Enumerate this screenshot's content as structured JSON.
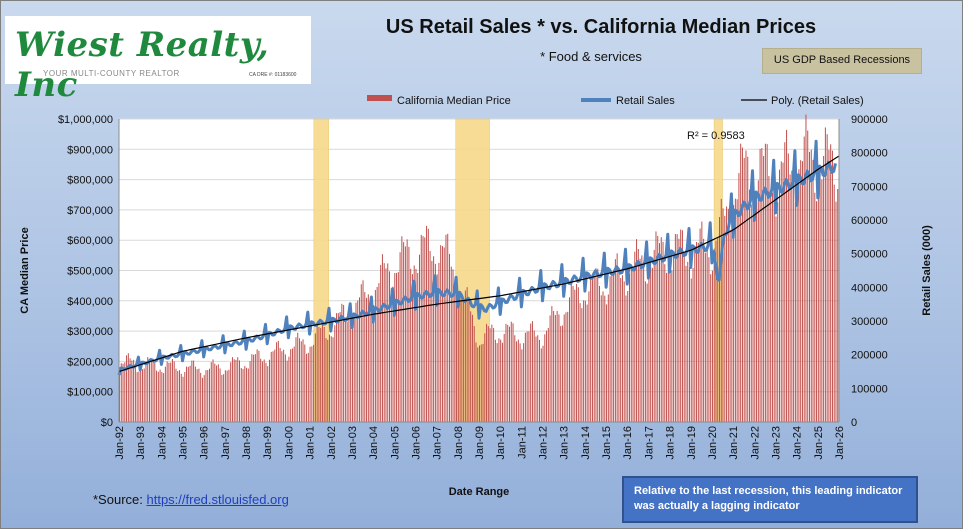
{
  "logo": {
    "name": "Wiest Realty, Inc",
    "tagline": "YOUR MULTI-COUNTY REALTOR",
    "dre": "CA DRE #: 01183600"
  },
  "colors": {
    "bars": "#c0504d",
    "retail_line": "#4f81bd",
    "trend_line": "#000000",
    "recession_band": "#f6d98a"
  },
  "source": {
    "prefix": "*Source: ",
    "link_text": "https://fred.stlouisfed.org"
  },
  "note": "Relative to the last recession, this leading indicator  was actually  a lagging  indicator",
  "recession_legend": "US GDP Based Recessions",
  "chart_data": {
    "type": "bar",
    "title": "US Retail Sales * vs. California Median Prices",
    "subtitle": "* Food & services",
    "xlabel": "Date Range",
    "ylabel_left": "CA Median Price",
    "ylabel_right": "Retail Sales (000)",
    "ylim_left": [
      0,
      1000000
    ],
    "ylim_right": [
      0,
      900000
    ],
    "yticks_left": [
      "$0",
      "$100,000",
      "$200,000",
      "$300,000",
      "$400,000",
      "$500,000",
      "$600,000",
      "$700,000",
      "$800,000",
      "$900,000",
      "$1,000,000"
    ],
    "yticks_right": [
      "0",
      "100000",
      "200000",
      "300000",
      "400000",
      "500000",
      "600000",
      "700000",
      "800000",
      "900000"
    ],
    "x_start": "Jan-92",
    "x_end": "Jan-26",
    "xticks": [
      "Jan-92",
      "Jan-93",
      "Jan-94",
      "Jan-95",
      "Jan-96",
      "Jan-97",
      "Jan-98",
      "Jan-99",
      "Jan-00",
      "Jan-01",
      "Jan-02",
      "Jan-03",
      "Jan-04",
      "Jan-05",
      "Jan-06",
      "Jan-07",
      "Jan-08",
      "Jan-09",
      "Jan-10",
      "Jan-11",
      "Jan-12",
      "Jan-13",
      "Jan-14",
      "Jan-15",
      "Jan-16",
      "Jan-17",
      "Jan-18",
      "Jan-19",
      "Jan-20",
      "Jan-21",
      "Jan-22",
      "Jan-23",
      "Jan-24",
      "Jan-25",
      "Jan-26"
    ],
    "legend_position": "top",
    "grid": true,
    "recessions": [
      {
        "start": 2001.2,
        "end": 2001.9
      },
      {
        "start": 2007.9,
        "end": 2009.5
      },
      {
        "start": 2020.1,
        "end": 2020.5
      }
    ],
    "annotation": "R² = 0.9583",
    "series": [
      {
        "name": "California Median Price",
        "type": "bar",
        "points": [
          [
            1992.0,
            200000
          ],
          [
            1993.0,
            190000
          ],
          [
            1994.0,
            185000
          ],
          [
            1995.0,
            178000
          ],
          [
            1996.0,
            175000
          ],
          [
            1997.0,
            182000
          ],
          [
            1998.0,
            200000
          ],
          [
            1999.0,
            220000
          ],
          [
            2000.0,
            245000
          ],
          [
            2001.0,
            265000
          ],
          [
            2002.0,
            315000
          ],
          [
            2003.0,
            370000
          ],
          [
            2004.0,
            440000
          ],
          [
            2005.0,
            525000
          ],
          [
            2006.0,
            560000
          ],
          [
            2007.0,
            580000
          ],
          [
            2007.7,
            520000
          ],
          [
            2008.0,
            440000
          ],
          [
            2008.5,
            370000
          ],
          [
            2009.0,
            270000
          ],
          [
            2009.5,
            290000
          ],
          [
            2010.0,
            300000
          ],
          [
            2011.0,
            285000
          ],
          [
            2012.0,
            290000
          ],
          [
            2013.0,
            380000
          ],
          [
            2014.0,
            440000
          ],
          [
            2015.0,
            460000
          ],
          [
            2016.0,
            500000
          ],
          [
            2017.0,
            540000
          ],
          [
            2018.0,
            570000
          ],
          [
            2019.0,
            560000
          ],
          [
            2020.0,
            580000
          ],
          [
            2020.5,
            640000
          ],
          [
            2021.0,
            770000
          ],
          [
            2021.5,
            820000
          ],
          [
            2022.0,
            830000
          ],
          [
            2022.5,
            820000
          ],
          [
            2023.0,
            800000
          ],
          [
            2023.5,
            830000
          ],
          [
            2024.0,
            860000
          ],
          [
            2024.5,
            870000
          ],
          [
            2025.0,
            860000
          ],
          [
            2025.7,
            840000
          ]
        ]
      },
      {
        "name": "Retail Sales",
        "type": "line",
        "points": [
          [
            1992.0,
            155000
          ],
          [
            1993.0,
            172000
          ],
          [
            1994.0,
            190000
          ],
          [
            1995.0,
            202000
          ],
          [
            1996.0,
            215000
          ],
          [
            1997.0,
            228000
          ],
          [
            1998.0,
            240000
          ],
          [
            1999.0,
            258000
          ],
          [
            2000.0,
            278000
          ],
          [
            2001.0,
            290000
          ],
          [
            2002.0,
            300000
          ],
          [
            2003.0,
            312000
          ],
          [
            2004.0,
            330000
          ],
          [
            2005.0,
            352000
          ],
          [
            2006.0,
            372000
          ],
          [
            2007.0,
            385000
          ],
          [
            2008.0,
            380000
          ],
          [
            2008.7,
            350000
          ],
          [
            2009.3,
            335000
          ],
          [
            2010.0,
            355000
          ],
          [
            2011.0,
            380000
          ],
          [
            2012.0,
            400000
          ],
          [
            2013.0,
            415000
          ],
          [
            2014.0,
            432000
          ],
          [
            2015.0,
            445000
          ],
          [
            2016.0,
            455000
          ],
          [
            2017.0,
            475000
          ],
          [
            2018.0,
            495000
          ],
          [
            2019.0,
            510000
          ],
          [
            2020.0,
            525000
          ],
          [
            2020.3,
            415000
          ],
          [
            2020.6,
            560000
          ],
          [
            2021.0,
            610000
          ],
          [
            2022.0,
            665000
          ],
          [
            2023.0,
            690000
          ],
          [
            2024.0,
            715000
          ],
          [
            2025.0,
            740000
          ],
          [
            2025.8,
            760000
          ]
        ]
      },
      {
        "name": "Poly. (Retail Sales)",
        "type": "trendline",
        "points": [
          [
            1992.0,
            150000
          ],
          [
            1995.0,
            210000
          ],
          [
            1998.0,
            250000
          ],
          [
            2001.0,
            285000
          ],
          [
            2004.0,
            320000
          ],
          [
            2007.0,
            350000
          ],
          [
            2010.0,
            375000
          ],
          [
            2013.0,
            410000
          ],
          [
            2016.0,
            455000
          ],
          [
            2019.0,
            510000
          ],
          [
            2021.0,
            570000
          ],
          [
            2023.0,
            660000
          ],
          [
            2025.0,
            750000
          ],
          [
            2026.0,
            790000
          ]
        ]
      }
    ]
  }
}
